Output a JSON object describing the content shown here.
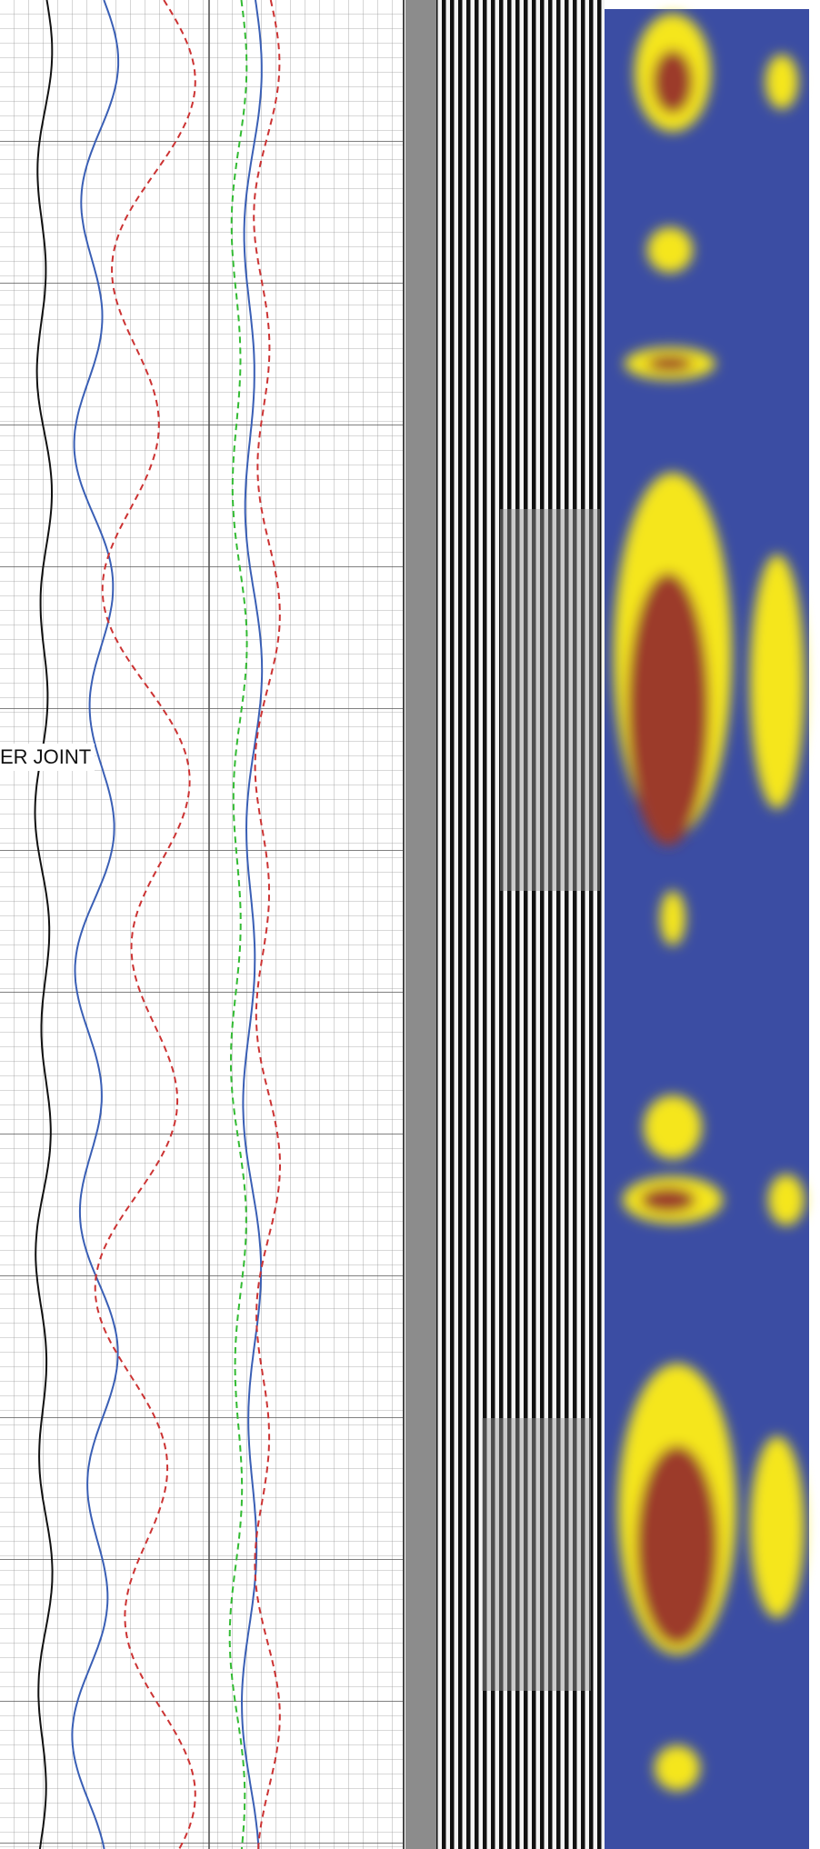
{
  "annotation": "ER JOINT"
}
